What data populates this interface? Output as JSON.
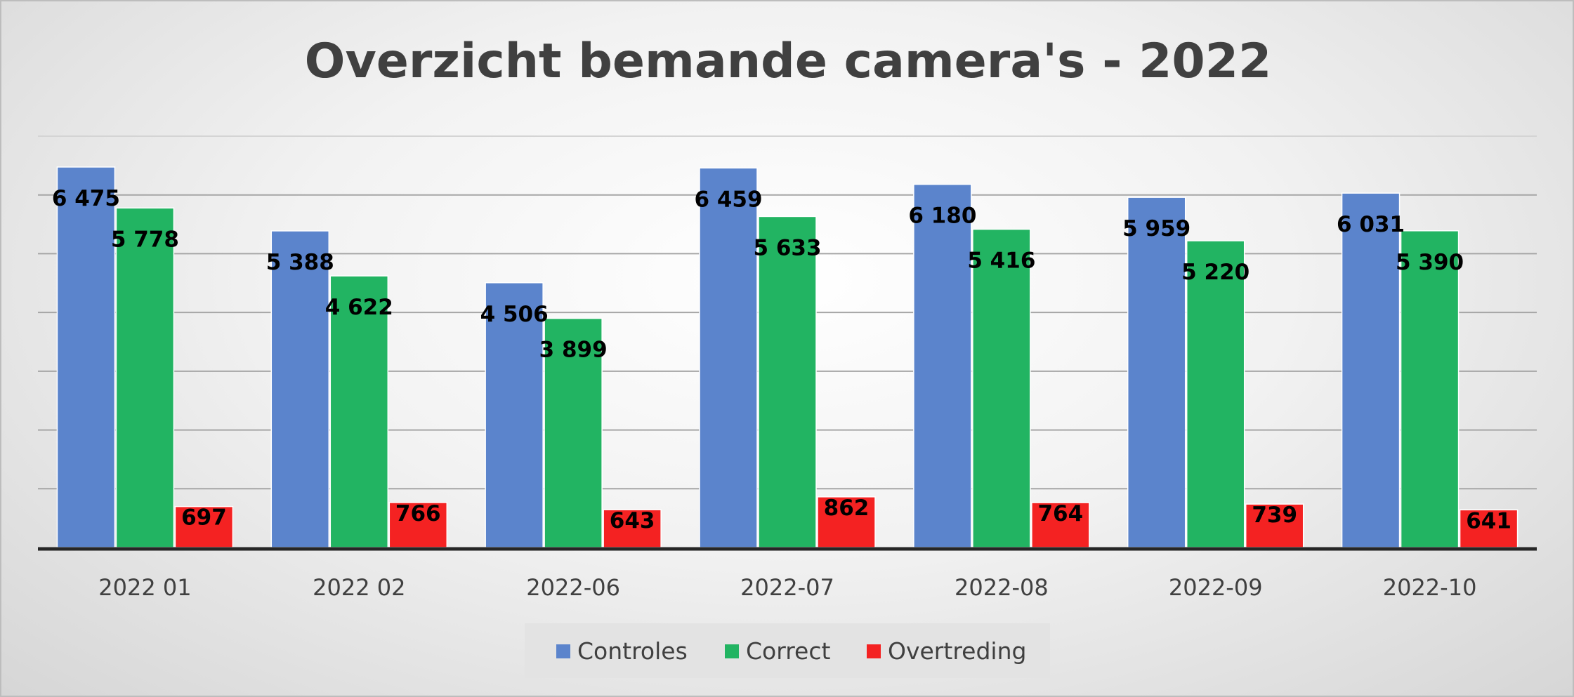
{
  "chart_data": {
    "type": "bar",
    "title": "Overzicht bemande camera's - 2022",
    "xlabel": "",
    "ylabel": "",
    "categories": [
      "2022 01",
      "2022 02",
      "2022-06",
      "2022-07",
      "2022-08",
      "2022-09",
      "2022-10"
    ],
    "series": [
      {
        "name": "Controles",
        "color": "#5b84cc",
        "values": [
          6475,
          5388,
          4506,
          6459,
          6180,
          5959,
          6031
        ],
        "labels": [
          "6 475",
          "5 388",
          "4 506",
          "6 459",
          "6 180",
          "5 959",
          "6 031"
        ]
      },
      {
        "name": "Correct",
        "color": "#22b462",
        "values": [
          5778,
          4622,
          3899,
          5633,
          5416,
          5220,
          5390
        ],
        "labels": [
          "5 778",
          "4 622",
          "3 899",
          "5 633",
          "5 416",
          "5 220",
          "5 390"
        ]
      },
      {
        "name": "Overtreding",
        "color": "#f42222",
        "values": [
          697,
          766,
          643,
          862,
          764,
          739,
          641
        ],
        "labels": [
          "697",
          "766",
          "643",
          "862",
          "764",
          "739",
          "641"
        ]
      }
    ],
    "ylim": [
      0,
      7000
    ],
    "grid": true,
    "y_axis_labels_shown": false,
    "legend_position": "bottom"
  }
}
